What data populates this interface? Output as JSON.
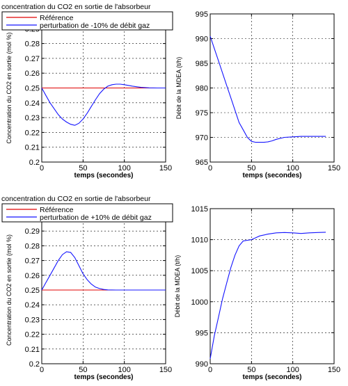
{
  "chart_data": [
    {
      "type": "line",
      "title": "concentration du CO2 en sortie de l'absorbeur",
      "xlabel": "temps (secondes)",
      "ylabel": "Concentration du CO2 en sortie (mol %)",
      "xlim": [
        0,
        150
      ],
      "ylim": [
        0.2,
        0.3
      ],
      "xticks": [
        "0",
        "50",
        "100",
        "150"
      ],
      "yticks": [
        "0.2",
        "0.21",
        "0.22",
        "0.23",
        "0.24",
        "0.25",
        "0.26",
        "0.27",
        "0.28",
        "0.29"
      ],
      "grid": true,
      "legend_position": "top-left",
      "series": [
        {
          "name": "Référence",
          "color": "#e00000",
          "x": [
            0,
            150
          ],
          "y": [
            0.25,
            0.25
          ]
        },
        {
          "name": "perturbation de -10% de débit gaz",
          "color": "#1414ff",
          "x": [
            0,
            5,
            10,
            15,
            20,
            25,
            30,
            35,
            40,
            45,
            50,
            55,
            60,
            65,
            70,
            75,
            80,
            85,
            90,
            95,
            100,
            110,
            120,
            130,
            140,
            150
          ],
          "y": [
            0.25,
            0.245,
            0.24,
            0.236,
            0.232,
            0.229,
            0.227,
            0.2255,
            0.2248,
            0.2262,
            0.229,
            0.233,
            0.2375,
            0.242,
            0.2462,
            0.2492,
            0.2512,
            0.2522,
            0.2526,
            0.2526,
            0.2522,
            0.2512,
            0.2504,
            0.2501,
            0.25,
            0.25
          ]
        }
      ]
    },
    {
      "type": "line",
      "xlabel": "temps (secondes)",
      "ylabel": "Débit de la MDEA (t/h)",
      "xlim": [
        0,
        150
      ],
      "ylim": [
        965,
        995
      ],
      "xticks": [
        "0",
        "50",
        "100",
        "150"
      ],
      "yticks": [
        "965",
        "970",
        "975",
        "980",
        "985",
        "990",
        "995"
      ],
      "grid": true,
      "series": [
        {
          "name": "",
          "color": "#1414ff",
          "x": [
            0,
            5,
            10,
            15,
            20,
            25,
            30,
            35,
            40,
            45,
            50,
            55,
            60,
            65,
            70,
            75,
            80,
            90,
            100,
            110,
            120,
            130,
            140
          ],
          "y": [
            990.5,
            988.0,
            985.5,
            983.0,
            980.5,
            978.0,
            975.5,
            973.0,
            971.5,
            970.0,
            969.2,
            969.0,
            969.0,
            969.0,
            969.1,
            969.3,
            969.6,
            970.0,
            970.1,
            970.2,
            970.2,
            970.2,
            970.2
          ]
        }
      ]
    },
    {
      "type": "line",
      "title": "concentration du CO2 en sortie de l'absorbeur",
      "xlabel": "temps (secondes)",
      "ylabel": "Concentration du CO2 en sortie (mol %)",
      "xlim": [
        0,
        150
      ],
      "ylim": [
        0.2,
        0.3
      ],
      "xticks": [
        "0",
        "50",
        "100",
        "150"
      ],
      "yticks": [
        "0.2",
        "0.21",
        "0.22",
        "0.23",
        "0.24",
        "0.25",
        "0.26",
        "0.27",
        "0.28",
        "0.29"
      ],
      "grid": true,
      "legend_position": "top-left",
      "series": [
        {
          "name": "Référence",
          "color": "#e00000",
          "x": [
            0,
            150
          ],
          "y": [
            0.25,
            0.25
          ]
        },
        {
          "name": "perturbation de +10% de débit gaz",
          "color": "#1414ff",
          "x": [
            0,
            5,
            10,
            15,
            20,
            25,
            30,
            35,
            40,
            45,
            50,
            55,
            60,
            65,
            70,
            75,
            80,
            90,
            100,
            110,
            120,
            130,
            140,
            150
          ],
          "y": [
            0.25,
            0.255,
            0.26,
            0.265,
            0.27,
            0.274,
            0.276,
            0.2755,
            0.272,
            0.2665,
            0.261,
            0.257,
            0.254,
            0.252,
            0.251,
            0.2504,
            0.2501,
            0.25,
            0.25,
            0.25,
            0.25,
            0.25,
            0.25,
            0.25
          ]
        }
      ]
    },
    {
      "type": "line",
      "xlabel": "temps (secondes)",
      "ylabel": "Débit de la MDEA (t/h)",
      "xlim": [
        0,
        150
      ],
      "ylim": [
        990,
        1015
      ],
      "xticks": [
        "0",
        "50",
        "100",
        "150"
      ],
      "yticks": [
        "990",
        "995",
        "1000",
        "1005",
        "1010",
        "1015"
      ],
      "grid": true,
      "series": [
        {
          "name": "",
          "color": "#1414ff",
          "x": [
            0,
            5,
            10,
            15,
            20,
            25,
            30,
            35,
            40,
            45,
            50,
            55,
            60,
            70,
            80,
            90,
            100,
            110,
            120,
            130,
            140
          ],
          "y": [
            990.8,
            994.5,
            997.5,
            1000.5,
            1003.0,
            1005.5,
            1007.5,
            1009.0,
            1009.8,
            1009.9,
            1010.0,
            1010.3,
            1010.6,
            1010.9,
            1011.1,
            1011.15,
            1011.1,
            1011.0,
            1011.1,
            1011.15,
            1011.2
          ]
        }
      ]
    }
  ]
}
